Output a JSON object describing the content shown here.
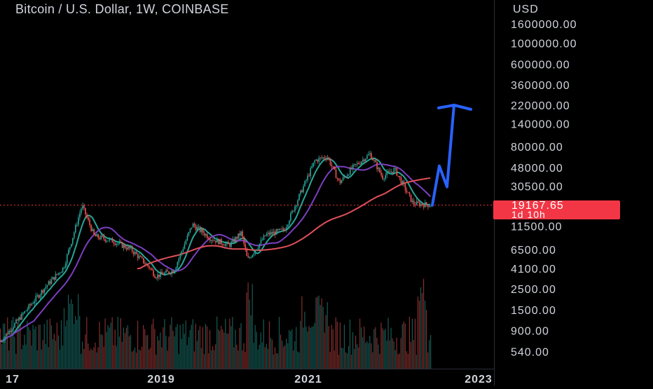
{
  "chart_data": {
    "type": "candlestick",
    "title": "Bitcoin / U.S. Dollar, 1W, COINBASE",
    "currency_label": "USD",
    "y_scale": "log",
    "y_ticks": [
      "1600000.00",
      "1000000.00",
      "600000.00",
      "360000.00",
      "220000.00",
      "140000.00",
      "80000.00",
      "48000.00",
      "30500.00",
      "11500.00",
      "6500.00",
      "4100.00",
      "2500.00",
      "1500.00",
      "900.00",
      "540.00"
    ],
    "x_ticks": [
      "17",
      "2019",
      "2021",
      "2023"
    ],
    "current_price": "19167.65",
    "countdown": "1d 10h",
    "price_path": [
      {
        "t": "2017-06",
        "price": 2600
      },
      {
        "t": "2017-09",
        "price": 4200
      },
      {
        "t": "2017-12",
        "price": 19000
      },
      {
        "t": "2018-02",
        "price": 9000
      },
      {
        "t": "2018-05",
        "price": 8000
      },
      {
        "t": "2018-08",
        "price": 6500
      },
      {
        "t": "2018-11",
        "price": 4200
      },
      {
        "t": "2018-12",
        "price": 3400
      },
      {
        "t": "2019-03",
        "price": 3900
      },
      {
        "t": "2019-06",
        "price": 12000
      },
      {
        "t": "2019-09",
        "price": 8500
      },
      {
        "t": "2019-12",
        "price": 7200
      },
      {
        "t": "2020-02",
        "price": 9800
      },
      {
        "t": "2020-03",
        "price": 5000
      },
      {
        "t": "2020-06",
        "price": 9300
      },
      {
        "t": "2020-09",
        "price": 10500
      },
      {
        "t": "2020-12",
        "price": 29000
      },
      {
        "t": "2021-02",
        "price": 57000
      },
      {
        "t": "2021-04",
        "price": 63000
      },
      {
        "t": "2021-06",
        "price": 33000
      },
      {
        "t": "2021-08",
        "price": 47000
      },
      {
        "t": "2021-11",
        "price": 67000
      },
      {
        "t": "2022-01",
        "price": 38000
      },
      {
        "t": "2022-03",
        "price": 46000
      },
      {
        "t": "2022-06",
        "price": 20000
      },
      {
        "t": "2022-09",
        "price": 19167.65
      }
    ],
    "moving_averages": [
      {
        "name": "",
        "color": "#26a69a"
      },
      {
        "name": "",
        "color": "#7b3fbf"
      },
      {
        "name": "",
        "color": "#e0505a"
      }
    ],
    "projection": {
      "color": "#2962ff",
      "points": [
        {
          "t": "2022-09",
          "price": 19167.65
        },
        {
          "t": "2022-10",
          "price": 50000
        },
        {
          "t": "2022-11",
          "price": 30000
        },
        {
          "t": "2023-01",
          "price": 220000
        }
      ]
    },
    "grid": false,
    "legend": "none"
  },
  "colors": {
    "up": "#26a69a",
    "down": "#ef5350",
    "background": "#000000",
    "text": "#d1d4dc",
    "price_tag": "#f23645"
  }
}
